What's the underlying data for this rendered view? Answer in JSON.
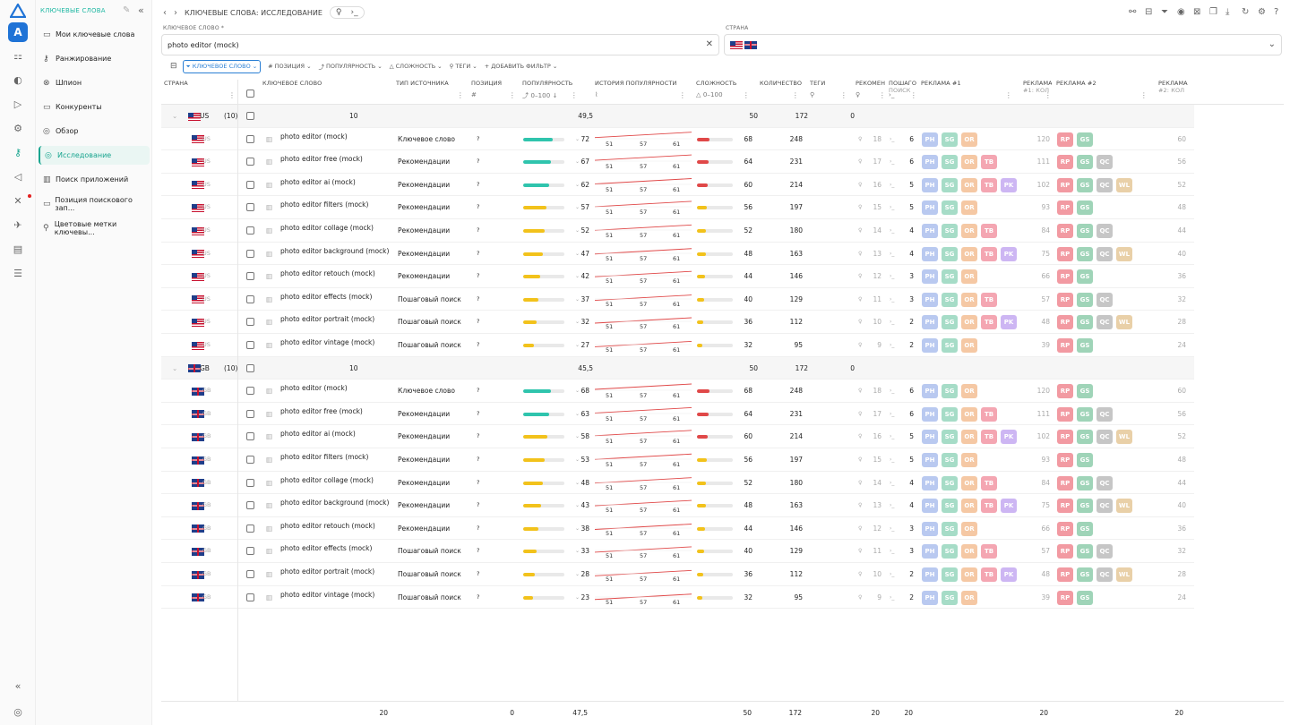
{
  "app": {
    "section": "КЛЮЧЕВЫЕ СЛОВА",
    "breadcrumb": "КЛЮЧЕВЫЕ СЛОВА: ИССЛЕДОВАНИЕ"
  },
  "sidebar": {
    "items": [
      {
        "label": "Мои ключевые слова",
        "icon": "document-icon"
      },
      {
        "label": "Ранжирование",
        "icon": "key-icon"
      },
      {
        "label": "Шпион",
        "icon": "spy-icon"
      },
      {
        "label": "Конкуренты",
        "icon": "document-icon"
      },
      {
        "label": "Обзор",
        "icon": "target-icon"
      },
      {
        "label": "Исследование",
        "icon": "research-icon"
      },
      {
        "label": "Поиск приложений",
        "icon": "chart-icon"
      },
      {
        "label": "Позиция поискового зап...",
        "icon": "document-icon"
      },
      {
        "label": "Цветовые метки ключевы...",
        "icon": "tag-icon"
      }
    ]
  },
  "filters": {
    "keyword_label": "КЛЮЧЕВОЕ СЛОВО *",
    "keyword_value": "photo editor (mock)",
    "country_label": "СТРАНА"
  },
  "toolbar": {
    "chips": [
      "КЛЮЧЕВОЕ СЛОВО",
      "ПОЗИЦИЯ",
      "ПОПУЛЯРНОСТЬ",
      "СЛОЖНОСТЬ",
      "ТЕГИ",
      "ДОБАВИТЬ ФИЛЬТР"
    ]
  },
  "columns": {
    "country": "СТРАНА",
    "keyword": "КЛЮЧЕВОЕ СЛОВО",
    "source": "ТИП ИСТОЧНИКА",
    "position": "ПОЗИЦИЯ",
    "position_sub": "#",
    "popularity": "ПОПУЛЯРНОСТЬ",
    "popularity_sub": "0–100",
    "history": "ИСТОРИЯ ПОПУЛЯРНОСТИ",
    "difficulty": "СЛОЖНОСТЬ",
    "difficulty_sub": "0–100",
    "count": "КОЛИЧЕСТВО",
    "tags": "ТЕГИ",
    "recom": "РЕКОМЕН",
    "search": "ПОШАГО",
    "search2": "ПОИСК",
    "ads1": "РЕКЛАМА #1",
    "ads1b": "РЕКЛАМА",
    "ads1b2": "#1: КОЛ",
    "ads2": "РЕКЛАМА #2",
    "ads2b": "РЕКЛАМА",
    "ads2b2": "#2: КОЛ"
  },
  "groups": [
    {
      "country": "US",
      "flag": "us",
      "count_label": "(10)",
      "kw_total": "10",
      "pop": "49,5",
      "diff": "50",
      "cnt": "172",
      "tags": "0",
      "rows": [
        {
          "kw": "photo editor (mock)",
          "src": "Ключевое слово",
          "pos": "?",
          "pop": 72,
          "popc": "#2fc4ad",
          "diff": 68,
          "diffc": "#e04848",
          "cnt": "248",
          "rec": "18",
          "ps": "6",
          "a1": [
            "PH",
            "SG",
            "OR"
          ],
          "a1n": "120",
          "a2": [
            "RP",
            "GS"
          ],
          "a2n": "60"
        },
        {
          "kw": "photo editor free (mock)",
          "src": "Рекомендации",
          "pos": "?",
          "pop": 67,
          "popc": "#2fc4ad",
          "diff": 64,
          "diffc": "#e04848",
          "cnt": "231",
          "rec": "17",
          "ps": "6",
          "a1": [
            "PH",
            "SG",
            "OR",
            "TB"
          ],
          "a1n": "111",
          "a2": [
            "RP",
            "GS",
            "QC"
          ],
          "a2n": "56"
        },
        {
          "kw": "photo editor ai (mock)",
          "src": "Рекомендации",
          "pos": "?",
          "pop": 62,
          "popc": "#2fc4ad",
          "diff": 60,
          "diffc": "#e04848",
          "cnt": "214",
          "rec": "16",
          "ps": "5",
          "a1": [
            "PH",
            "SG",
            "OR",
            "TB",
            "PK"
          ],
          "a1n": "102",
          "a2": [
            "RP",
            "GS",
            "QC",
            "WL"
          ],
          "a2n": "52"
        },
        {
          "kw": "photo editor filters (mock)",
          "src": "Рекомендации",
          "pos": "?",
          "pop": 57,
          "popc": "#f2c21b",
          "diff": 56,
          "diffc": "#f2c21b",
          "cnt": "197",
          "rec": "15",
          "ps": "5",
          "a1": [
            "PH",
            "SG",
            "OR"
          ],
          "a1n": "93",
          "a2": [
            "RP",
            "GS"
          ],
          "a2n": "48"
        },
        {
          "kw": "photo editor collage (mock)",
          "src": "Рекомендации",
          "pos": "?",
          "pop": 52,
          "popc": "#f2c21b",
          "diff": 52,
          "diffc": "#f2c21b",
          "cnt": "180",
          "rec": "14",
          "ps": "4",
          "a1": [
            "PH",
            "SG",
            "OR",
            "TB"
          ],
          "a1n": "84",
          "a2": [
            "RP",
            "GS",
            "QC"
          ],
          "a2n": "44"
        },
        {
          "kw": "photo editor background (mock)",
          "src": "Рекомендации",
          "pos": "?",
          "pop": 47,
          "popc": "#f2c21b",
          "diff": 48,
          "diffc": "#f2c21b",
          "cnt": "163",
          "rec": "13",
          "ps": "4",
          "a1": [
            "PH",
            "SG",
            "OR",
            "TB",
            "PK"
          ],
          "a1n": "75",
          "a2": [
            "RP",
            "GS",
            "QC",
            "WL"
          ],
          "a2n": "40"
        },
        {
          "kw": "photo editor retouch (mock)",
          "src": "Рекомендации",
          "pos": "?",
          "pop": 42,
          "popc": "#f2c21b",
          "diff": 44,
          "diffc": "#f2c21b",
          "cnt": "146",
          "rec": "12",
          "ps": "3",
          "a1": [
            "PH",
            "SG",
            "OR"
          ],
          "a1n": "66",
          "a2": [
            "RP",
            "GS"
          ],
          "a2n": "36"
        },
        {
          "kw": "photo editor effects (mock)",
          "src": "Пошаговый поиск",
          "pos": "?",
          "pop": 37,
          "popc": "#f2c21b",
          "diff": 40,
          "diffc": "#f2c21b",
          "cnt": "129",
          "rec": "11",
          "ps": "3",
          "a1": [
            "PH",
            "SG",
            "OR",
            "TB"
          ],
          "a1n": "57",
          "a2": [
            "RP",
            "GS",
            "QC"
          ],
          "a2n": "32"
        },
        {
          "kw": "photo editor portrait (mock)",
          "src": "Пошаговый поиск",
          "pos": "?",
          "pop": 32,
          "popc": "#f2c21b",
          "diff": 36,
          "diffc": "#f2c21b",
          "cnt": "112",
          "rec": "10",
          "ps": "2",
          "a1": [
            "PH",
            "SG",
            "OR",
            "TB",
            "PK"
          ],
          "a1n": "48",
          "a2": [
            "RP",
            "GS",
            "QC",
            "WL"
          ],
          "a2n": "28"
        },
        {
          "kw": "photo editor vintage (mock)",
          "src": "Пошаговый поиск",
          "pos": "?",
          "pop": 27,
          "popc": "#f2c21b",
          "diff": 32,
          "diffc": "#f2c21b",
          "cnt": "95",
          "rec": "9",
          "ps": "2",
          "a1": [
            "PH",
            "SG",
            "OR"
          ],
          "a1n": "39",
          "a2": [
            "RP",
            "GS"
          ],
          "a2n": "24"
        }
      ]
    },
    {
      "country": "GB",
      "flag": "gb",
      "count_label": "(10)",
      "kw_total": "10",
      "pop": "45,5",
      "diff": "50",
      "cnt": "172",
      "tags": "0",
      "rows": [
        {
          "kw": "photo editor (mock)",
          "src": "Ключевое слово",
          "pos": "?",
          "pop": 68,
          "popc": "#2fc4ad",
          "diff": 68,
          "diffc": "#e04848",
          "cnt": "248",
          "rec": "18",
          "ps": "6",
          "a1": [
            "PH",
            "SG",
            "OR"
          ],
          "a1n": "120",
          "a2": [
            "RP",
            "GS"
          ],
          "a2n": "60"
        },
        {
          "kw": "photo editor free (mock)",
          "src": "Рекомендации",
          "pos": "?",
          "pop": 63,
          "popc": "#2fc4ad",
          "diff": 64,
          "diffc": "#e04848",
          "cnt": "231",
          "rec": "17",
          "ps": "6",
          "a1": [
            "PH",
            "SG",
            "OR",
            "TB"
          ],
          "a1n": "111",
          "a2": [
            "RP",
            "GS",
            "QC"
          ],
          "a2n": "56"
        },
        {
          "kw": "photo editor ai (mock)",
          "src": "Рекомендации",
          "pos": "?",
          "pop": 58,
          "popc": "#f2c21b",
          "diff": 60,
          "diffc": "#e04848",
          "cnt": "214",
          "rec": "16",
          "ps": "5",
          "a1": [
            "PH",
            "SG",
            "OR",
            "TB",
            "PK"
          ],
          "a1n": "102",
          "a2": [
            "RP",
            "GS",
            "QC",
            "WL"
          ],
          "a2n": "52"
        },
        {
          "kw": "photo editor filters (mock)",
          "src": "Рекомендации",
          "pos": "?",
          "pop": 53,
          "popc": "#f2c21b",
          "diff": 56,
          "diffc": "#f2c21b",
          "cnt": "197",
          "rec": "15",
          "ps": "5",
          "a1": [
            "PH",
            "SG",
            "OR"
          ],
          "a1n": "93",
          "a2": [
            "RP",
            "GS"
          ],
          "a2n": "48"
        },
        {
          "kw": "photo editor collage (mock)",
          "src": "Рекомендации",
          "pos": "?",
          "pop": 48,
          "popc": "#f2c21b",
          "diff": 52,
          "diffc": "#f2c21b",
          "cnt": "180",
          "rec": "14",
          "ps": "4",
          "a1": [
            "PH",
            "SG",
            "OR",
            "TB"
          ],
          "a1n": "84",
          "a2": [
            "RP",
            "GS",
            "QC"
          ],
          "a2n": "44"
        },
        {
          "kw": "photo editor background (mock)",
          "src": "Рекомендации",
          "pos": "?",
          "pop": 43,
          "popc": "#f2c21b",
          "diff": 48,
          "diffc": "#f2c21b",
          "cnt": "163",
          "rec": "13",
          "ps": "4",
          "a1": [
            "PH",
            "SG",
            "OR",
            "TB",
            "PK"
          ],
          "a1n": "75",
          "a2": [
            "RP",
            "GS",
            "QC",
            "WL"
          ],
          "a2n": "40"
        },
        {
          "kw": "photo editor retouch (mock)",
          "src": "Рекомендации",
          "pos": "?",
          "pop": 38,
          "popc": "#f2c21b",
          "diff": 44,
          "diffc": "#f2c21b",
          "cnt": "146",
          "rec": "12",
          "ps": "3",
          "a1": [
            "PH",
            "SG",
            "OR"
          ],
          "a1n": "66",
          "a2": [
            "RP",
            "GS"
          ],
          "a2n": "36"
        },
        {
          "kw": "photo editor effects (mock)",
          "src": "Пошаговый поиск",
          "pos": "?",
          "pop": 33,
          "popc": "#f2c21b",
          "diff": 40,
          "diffc": "#f2c21b",
          "cnt": "129",
          "rec": "11",
          "ps": "3",
          "a1": [
            "PH",
            "SG",
            "OR",
            "TB"
          ],
          "a1n": "57",
          "a2": [
            "RP",
            "GS",
            "QC"
          ],
          "a2n": "32"
        },
        {
          "kw": "photo editor portrait (mock)",
          "src": "Пошаговый поиск",
          "pos": "?",
          "pop": 28,
          "popc": "#f2c21b",
          "diff": 36,
          "diffc": "#f2c21b",
          "cnt": "112",
          "rec": "10",
          "ps": "2",
          "a1": [
            "PH",
            "SG",
            "OR",
            "TB",
            "PK"
          ],
          "a1n": "48",
          "a2": [
            "RP",
            "GS",
            "QC",
            "WL"
          ],
          "a2n": "28"
        },
        {
          "kw": "photo editor vintage (mock)",
          "src": "Пошаговый поиск",
          "pos": "?",
          "pop": 23,
          "popc": "#f2c21b",
          "diff": 32,
          "diffc": "#f2c21b",
          "cnt": "95",
          "rec": "9",
          "ps": "2",
          "a1": [
            "PH",
            "SG",
            "OR"
          ],
          "a1n": "39",
          "a2": [
            "RP",
            "GS"
          ],
          "a2n": "24"
        }
      ]
    }
  ],
  "spark_labels": [
    "51",
    "57",
    "61"
  ],
  "footer": {
    "kw": "20",
    "pos": "0",
    "pop": "47,5",
    "diff": "50",
    "cnt": "172",
    "rec": "20",
    "ps": "20",
    "a1n": "20",
    "a2n": "20"
  }
}
